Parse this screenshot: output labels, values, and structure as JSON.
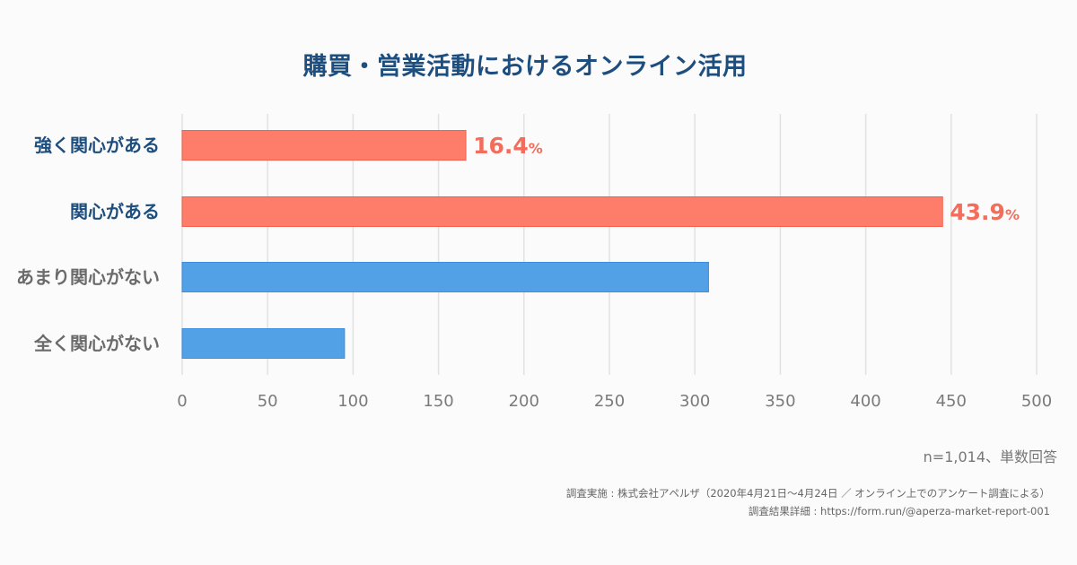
{
  "chart_data": {
    "type": "bar",
    "orientation": "horizontal",
    "title": "購買・営業活動におけるオンライン活用",
    "categories": [
      "強く関心がある",
      "関心がある",
      "あまり関心がない",
      "全く関心がない"
    ],
    "values": [
      166,
      445,
      308,
      95
    ],
    "data_labels": [
      "16.4",
      "43.9",
      null,
      null
    ],
    "data_label_suffix": "%",
    "bar_colors": [
      "#fe7d6a",
      "#fe7d6a",
      "#52a0e6",
      "#52a0e6"
    ],
    "category_label_colors": [
      "#1d4e7e",
      "#1d4e7e",
      "#6b6b6b",
      "#6b6b6b"
    ],
    "xlabel": "",
    "ylabel": "",
    "xlim": [
      0,
      500
    ],
    "xticks": [
      0,
      50,
      100,
      150,
      200,
      250,
      300,
      350,
      400,
      450,
      500
    ],
    "grid": true,
    "legend": "none"
  },
  "footer": {
    "sample_note": "n=1,014、単数回答",
    "source_line1": "調査実施 : 株式会社アペルザ（2020年4月21日〜4月24日 ／ オンライン上でのアンケート調査による）",
    "source_line2": "調査結果詳細 : https://form.run/@aperza-market-report-001"
  }
}
